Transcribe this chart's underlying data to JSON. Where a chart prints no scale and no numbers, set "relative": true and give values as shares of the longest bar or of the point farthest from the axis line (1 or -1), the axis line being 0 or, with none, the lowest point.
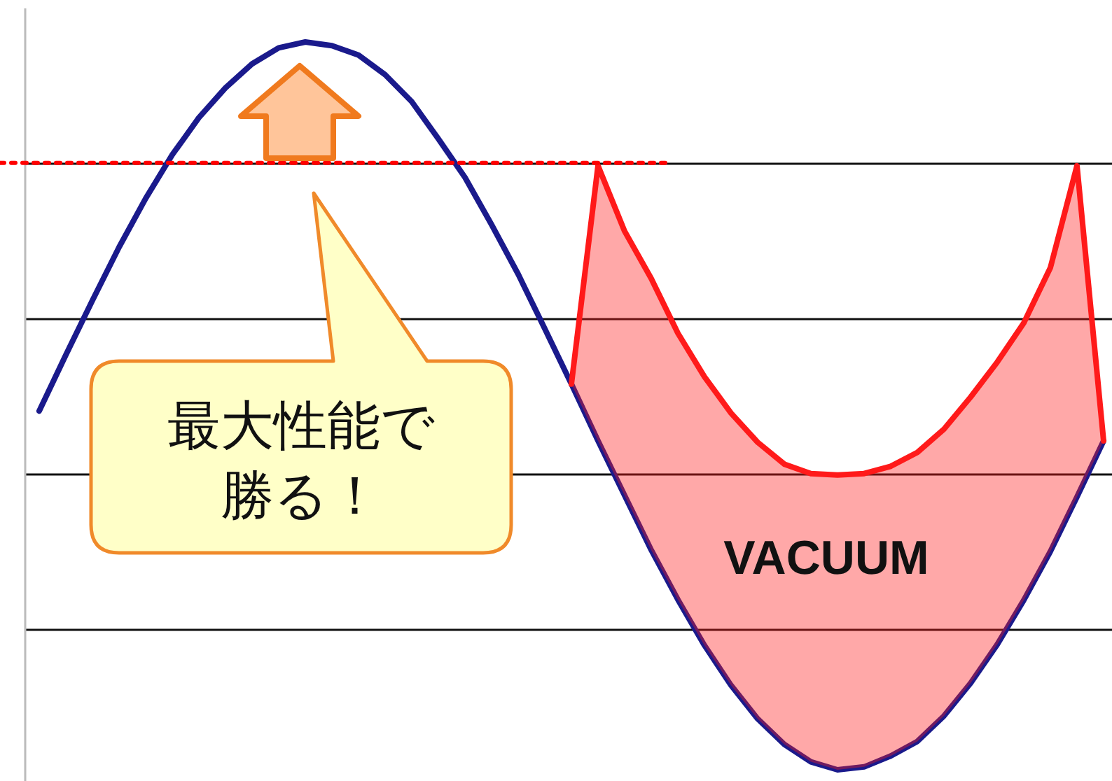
{
  "chart_data": {
    "type": "line",
    "relative": true,
    "grid": "y",
    "categories": [
      null,
      null,
      null,
      null,
      null,
      null,
      null,
      null,
      null,
      null,
      null,
      null,
      null,
      null,
      null,
      null,
      null,
      null,
      null,
      null,
      null,
      null,
      null,
      null,
      null,
      null,
      null,
      null,
      null,
      null,
      null,
      null,
      null,
      null,
      null,
      null,
      null,
      null,
      null,
      null,
      null
    ],
    "series": [
      {
        "color": "#1a1a8c",
        "values": [
          0.493,
          0.57,
          0.645,
          0.718,
          0.785,
          0.845,
          0.896,
          0.937,
          0.97,
          0.992,
          1.0,
          0.995,
          0.982,
          0.955,
          0.918,
          0.867,
          0.814,
          0.749,
          0.681,
          0.606,
          0.53,
          0.452,
          0.377,
          0.302,
          0.234,
          0.171,
          0.116,
          0.07,
          0.035,
          0.011,
          0,
          0.004,
          0.019,
          0.039,
          0.074,
          0.119,
          0.172,
          0.233,
          0.3,
          0.375,
          0.452
        ]
      },
      {
        "color": "#ff1a1a",
        "values": [
          null,
          null,
          null,
          null,
          null,
          null,
          null,
          null,
          null,
          null,
          null,
          null,
          null,
          null,
          null,
          null,
          null,
          null,
          null,
          null,
          0.53,
          0.83,
          0.74,
          0.675,
          0.6,
          0.54,
          0.49,
          0.45,
          0.42,
          0.407,
          0.405,
          0.407,
          0.417,
          0.436,
          0.468,
          0.512,
          0.56,
          0.614,
          0.69,
          0.83,
          0.452
        ],
        "lower": [
          null,
          null,
          null,
          null,
          null,
          null,
          null,
          null,
          null,
          null,
          null,
          null,
          null,
          null,
          null,
          null,
          null,
          null,
          null,
          null,
          0.53,
          0.452,
          0.377,
          0.302,
          0.234,
          0.171,
          0.116,
          0.07,
          0.035,
          0.011,
          0,
          0.004,
          0.019,
          0.039,
          0.074,
          0.119,
          0.172,
          0.233,
          0.3,
          0.375,
          0.452
        ],
        "upper": [
          null,
          null,
          null,
          null,
          null,
          null,
          null,
          null,
          null,
          null,
          null,
          null,
          null,
          null,
          null,
          null,
          null,
          null,
          null,
          null,
          0.53,
          0.83,
          0.74,
          0.675,
          0.6,
          0.54,
          0.49,
          0.45,
          0.42,
          0.407,
          0.405,
          0.407,
          0.417,
          0.436,
          0.468,
          0.512,
          0.56,
          0.614,
          0.69,
          0.83,
          0.452
        ]
      }
    ],
    "ref_lines": [
      {
        "axis": "y",
        "value": 0.834,
        "color": "#ff0000",
        "line_style": "dotted"
      }
    ],
    "annotations": [
      "最大性能で勝る！",
      "VACUUM"
    ]
  }
}
